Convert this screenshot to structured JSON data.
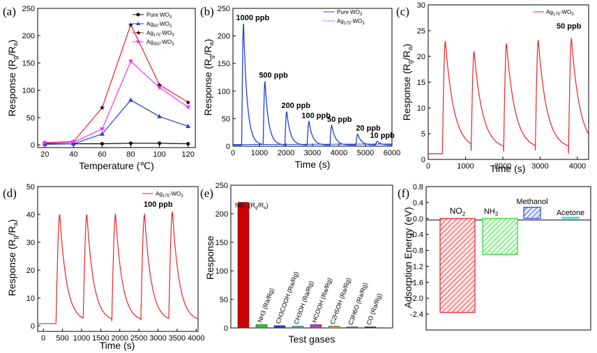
{
  "chart_data": [
    {
      "panel": "(a)",
      "type": "line",
      "x": [
        20,
        40,
        60,
        80,
        100,
        120
      ],
      "xlabel": "Temperature (℃)",
      "ylabel": "Response (R_g/R_a)",
      "xlim": [
        15,
        125
      ],
      "ylim": [
        -5,
        250
      ],
      "xticks": [
        "20",
        "40",
        "60",
        "80",
        "100",
        "120"
      ],
      "yticks": [
        "0",
        "50",
        "100",
        "150",
        "200",
        "250"
      ],
      "series": [
        {
          "name": "Pure WO3",
          "color": "#000000",
          "marker": "circle",
          "values": [
            2,
            2,
            2,
            3,
            3,
            2
          ]
        },
        {
          "name": "Ag50-WO3",
          "color": "#1f3fd6",
          "marker": "triangle",
          "values": [
            1,
            2,
            20,
            82,
            52,
            34
          ]
        },
        {
          "name": "Ag175-WO3",
          "color": "#ee2020",
          "marker": "star",
          "values": [
            4,
            6,
            68,
            220,
            110,
            78
          ]
        },
        {
          "name": "Ag350-WO3",
          "color": "#ff2aff",
          "marker": "triangle-down",
          "values": [
            3,
            5,
            29,
            153,
            105,
            69
          ]
        }
      ]
    },
    {
      "panel": "(b)",
      "type": "line",
      "xlabel": "Time (s)",
      "ylabel": "Response (R_g/R_a)",
      "xlim": [
        0,
        6000
      ],
      "ylim": [
        0,
        250
      ],
      "xticks": [
        "0",
        "1000",
        "2000",
        "3000",
        "4000",
        "5000",
        "6000"
      ],
      "yticks": [
        "0",
        "50",
        "100",
        "150",
        "200",
        "250"
      ],
      "series": [
        {
          "name": "Pure WO3",
          "color": "#1f3fd6",
          "style": "solid"
        },
        {
          "name": "Ag175-WO3",
          "color": "#1f3fd6",
          "style": "dotted"
        }
      ],
      "pulses": [
        {
          "label": "1000 ppb",
          "start": 330,
          "peak": 222
        },
        {
          "label": "500 ppb",
          "start": 1140,
          "peak": 118
        },
        {
          "label": "200 ppb",
          "start": 1960,
          "peak": 63
        },
        {
          "label": "100 ppb",
          "start": 2800,
          "peak": 45
        },
        {
          "label": "50 ppb",
          "start": 3660,
          "peak": 38
        },
        {
          "label": "20 ppb",
          "start": 4640,
          "peak": 22
        },
        {
          "label": "10 ppb",
          "start": 5380,
          "peak": 9
        }
      ]
    },
    {
      "panel": "(c)",
      "type": "line",
      "xlabel": "Time (s)",
      "ylabel": "Response (R_g/R_a)",
      "xlim": [
        0,
        4300
      ],
      "ylim": [
        0,
        30
      ],
      "xticks": [
        "0",
        "1000",
        "2000",
        "3000",
        "4000"
      ],
      "yticks": [
        "0",
        "5",
        "10",
        "15",
        "20",
        "25",
        "30"
      ],
      "legend": "Ag175-WO3",
      "annotation": "50 ppb",
      "color": "#ee2020",
      "baseline": 1.1,
      "pulses": [
        {
          "start": 380,
          "peak": 23
        },
        {
          "start": 1150,
          "peak": 21
        },
        {
          "start": 2020,
          "peak": 22.5
        },
        {
          "start": 2870,
          "peak": 23.2
        },
        {
          "start": 3760,
          "peak": 23.5
        }
      ]
    },
    {
      "panel": "(d)",
      "type": "line",
      "xlabel": "Time (s)",
      "ylabel": "Response (R_g/R_a)",
      "xlim": [
        -150,
        4050
      ],
      "ylim": [
        -2,
        50
      ],
      "xticks": [
        "0",
        "500",
        "1000",
        "1500",
        "2000",
        "2500",
        "3000",
        "3500",
        "4000"
      ],
      "yticks": [
        "0",
        "10",
        "20",
        "30",
        "40",
        "50"
      ],
      "legend": "Ag175-WO3",
      "annotation": "100 ppb",
      "color": "#ee2020",
      "baseline": 0.8,
      "pulses": [
        {
          "start": 330,
          "peak": 40
        },
        {
          "start": 1040,
          "peak": 40
        },
        {
          "start": 1790,
          "peak": 40
        },
        {
          "start": 2550,
          "peak": 40
        },
        {
          "start": 3280,
          "peak": 41
        }
      ]
    },
    {
      "panel": "(e)",
      "type": "bar",
      "xlabel": "Test gases",
      "ylabel": "Response",
      "ylim": [
        0,
        250
      ],
      "yticks": [
        "0",
        "50",
        "100",
        "150",
        "200",
        "250"
      ],
      "top_label": "NO2 (Rg/Ra)",
      "categories": [
        "NO2",
        "NH3",
        "CH3COOH",
        "CH3OH",
        "HCOOH",
        "C2H5OH",
        "C3H6O",
        "CO"
      ],
      "rotated_labels": [
        "NH3 (Ra/Rg)",
        "CH3COOH (Ra/Rg)",
        "CH3OH (Ra/Rg)",
        "HCOOH (Ra/Rg)",
        "C2H5OH (Ra/Rg)",
        "C3H6O (Ra/Rg)",
        "CO (Ra/Rg)"
      ],
      "values": [
        220,
        6,
        4,
        3,
        6,
        3,
        2,
        2
      ],
      "colors": [
        "#cc0000",
        "#22cc22",
        "#1f3fd6",
        "#20c0c0",
        "#cc33cc",
        "#b8b800",
        "#888888",
        "#444444"
      ]
    },
    {
      "panel": "(f)",
      "type": "bar",
      "ylabel": "Adsorption Energy (eV)",
      "ylim": [
        -2.8,
        0.8
      ],
      "yticks": [
        "0.8",
        "0.4",
        "0.0",
        "-0.4",
        "-0.8",
        "-1.2",
        "-1.6",
        "-2.0",
        "-2.4"
      ],
      "categories": [
        "NO2",
        "NH3",
        "Methanol",
        "Acetone"
      ],
      "values": [
        -2.36,
        -0.9,
        0.28,
        0.03
      ],
      "colors": [
        "#ee2020",
        "#22dd22",
        "#1f3fd6",
        "#20d0d0"
      ]
    }
  ]
}
